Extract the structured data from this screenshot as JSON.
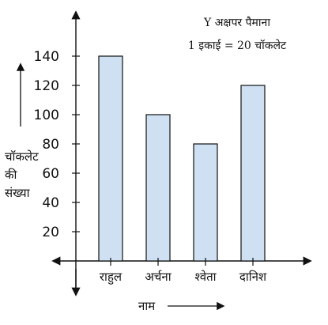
{
  "chart_data": {
    "type": "bar",
    "categories": [
      "राहुल",
      "अर्चना",
      "श्वेता",
      "दानिश"
    ],
    "values": [
      140,
      100,
      80,
      120
    ],
    "ylim": [
      0,
      140
    ],
    "yticks": [
      20,
      40,
      60,
      80,
      100,
      120,
      140
    ],
    "xlabel": "नाम",
    "ylabel_lines": [
      "चॉकलेट",
      "की",
      "संख्या"
    ],
    "scale_note": [
      "Y अक्षपर पैमाना",
      "1 इकाई = 20 चॉकलेट"
    ],
    "bar_fill": "#cfe0f3",
    "bar_stroke": "#111111",
    "grid": false,
    "legend": "none"
  }
}
